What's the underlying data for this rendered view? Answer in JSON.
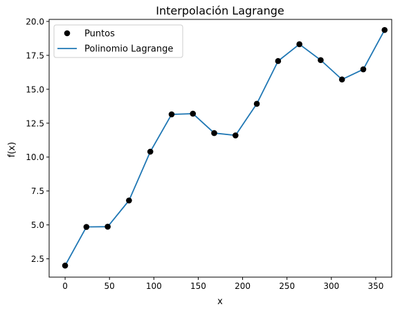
{
  "chart_data": {
    "type": "line",
    "title": "Interpolación Lagrange",
    "xlabel": "x",
    "ylabel": "f(x)",
    "xlim": [
      -18,
      368
    ],
    "ylim": [
      1.15,
      20.15
    ],
    "xticks": [
      0,
      50,
      100,
      150,
      200,
      250,
      300,
      350
    ],
    "yticks": [
      2.5,
      5.0,
      7.5,
      10.0,
      12.5,
      15.0,
      17.5,
      20.0
    ],
    "xtick_labels": [
      "0",
      "50",
      "100",
      "150",
      "200",
      "250",
      "300",
      "350"
    ],
    "ytick_labels": [
      "2.5",
      "5.0",
      "7.5",
      "10.0",
      "12.5",
      "15.0",
      "17.5",
      "20.0"
    ],
    "grid": false,
    "legend_position": "top-left",
    "series": [
      {
        "name": "Puntos",
        "kind": "scatter",
        "color": "#000000",
        "x": [
          0,
          24,
          48,
          72,
          96,
          120,
          144,
          168,
          192,
          216,
          240,
          264,
          288,
          312,
          336,
          360
        ],
        "y": [
          2.0,
          4.85,
          4.87,
          6.8,
          10.4,
          13.15,
          13.2,
          11.77,
          11.6,
          13.93,
          17.08,
          18.32,
          17.15,
          15.72,
          16.47,
          19.37
        ]
      },
      {
        "name": "Polinomio Lagrange",
        "kind": "line",
        "color": "#1f77b4",
        "x": [
          0,
          24,
          48,
          72,
          96,
          120,
          144,
          168,
          192,
          216,
          240,
          264,
          288,
          312,
          336,
          360
        ],
        "y": [
          2.0,
          4.85,
          4.87,
          6.8,
          10.4,
          13.15,
          13.2,
          11.77,
          11.6,
          13.93,
          17.08,
          18.32,
          17.15,
          15.72,
          16.47,
          19.37
        ]
      }
    ]
  }
}
